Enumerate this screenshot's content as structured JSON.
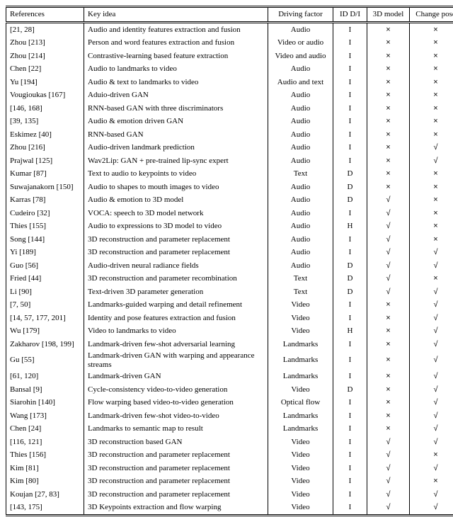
{
  "columns": [
    {
      "key": "ref",
      "label": "References",
      "class": "col-ref",
      "align": "left"
    },
    {
      "key": "idea",
      "label": "Key idea",
      "class": "col-idea",
      "align": "left"
    },
    {
      "key": "drv",
      "label": "Driving factor",
      "class": "col-drv",
      "align": "center"
    },
    {
      "key": "id",
      "label": "ID D/I",
      "class": "col-id",
      "align": "center"
    },
    {
      "key": "m3d",
      "label": "3D model",
      "class": "col-3d",
      "align": "center"
    },
    {
      "key": "pose",
      "label": "Change pose",
      "class": "col-pose",
      "align": "center"
    }
  ],
  "symbols": {
    "yes": "√",
    "no": "×"
  },
  "style": {
    "font_family": "Times New Roman",
    "font_size_pt": 8.5,
    "header_border": "double",
    "text_color": "#000000",
    "bg_color": "#ffffff"
  },
  "rows": [
    {
      "ref": "[21, 28]",
      "idea": "Audio and identity features extraction and fusion",
      "drv": "Audio",
      "id": "I",
      "m3d": "no",
      "pose": "no"
    },
    {
      "ref": "Zhou [213]",
      "idea": "Person and word features extraction and fusion",
      "drv": "Video or audio",
      "id": "I",
      "m3d": "no",
      "pose": "no"
    },
    {
      "ref": "Zhou [214]",
      "idea": "Contrastive-learning based feature extraction",
      "drv": "Video and audio",
      "id": "I",
      "m3d": "no",
      "pose": "no"
    },
    {
      "ref": "Chen [22]",
      "idea": "Audio to landmarks to video",
      "drv": "Audio",
      "id": "I",
      "m3d": "no",
      "pose": "no"
    },
    {
      "ref": "Yu [194]",
      "idea": "Audio & text to landmarks to video",
      "drv": "Audio and text",
      "id": "I",
      "m3d": "no",
      "pose": "no"
    },
    {
      "ref": "Vougioukas [167]",
      "idea": "Aduio-driven GAN",
      "drv": "Audio",
      "id": "I",
      "m3d": "no",
      "pose": "no"
    },
    {
      "ref": "[146, 168]",
      "idea": "RNN-based GAN with three discriminators",
      "drv": "Audio",
      "id": "I",
      "m3d": "no",
      "pose": "no"
    },
    {
      "ref": "[39, 135]",
      "idea": "Audio & emotion driven GAN",
      "drv": "Audio",
      "id": "I",
      "m3d": "no",
      "pose": "no"
    },
    {
      "ref": "Eskimez [40]",
      "idea": "RNN-based GAN",
      "drv": "Audio",
      "id": "I",
      "m3d": "no",
      "pose": "no"
    },
    {
      "ref": "Zhou [216]",
      "idea": "Audio-driven landmark prediction",
      "drv": "Audio",
      "id": "I",
      "m3d": "no",
      "pose": "yes"
    },
    {
      "ref": "Prajwal [125]",
      "idea": "Wav2Lip: GAN + pre-trained lip-sync expert",
      "drv": "Audio",
      "id": "I",
      "m3d": "no",
      "pose": "yes"
    },
    {
      "ref": "Kumar [87]",
      "idea": "Text to audio to keypoints to video",
      "drv": "Text",
      "id": "D",
      "m3d": "no",
      "pose": "no"
    },
    {
      "ref": "Suwajanakorn [150]",
      "idea": "Audio to shapes to mouth images to video",
      "drv": "Audio",
      "id": "D",
      "m3d": "no",
      "pose": "no"
    },
    {
      "ref": "Karras [78]",
      "idea": "Audio & emotion to 3D model",
      "drv": "Audio",
      "id": "D",
      "m3d": "yes",
      "pose": "no"
    },
    {
      "ref": "Cudeiro [32]",
      "idea": "VOCA: speech to 3D model network",
      "drv": "Audio",
      "id": "I",
      "m3d": "yes",
      "pose": "no"
    },
    {
      "ref": "Thies [155]",
      "idea": "Audio to expressions to 3D model to video",
      "drv": "Audio",
      "id": "H",
      "m3d": "yes",
      "pose": "no"
    },
    {
      "ref": "Song [144]",
      "idea": "3D reconstruction and parameter replacement",
      "drv": "Audio",
      "id": "I",
      "m3d": "yes",
      "pose": "no"
    },
    {
      "ref": "Yi [189]",
      "idea": "3D reconstruction and parameter replacement",
      "drv": "Audio",
      "id": "I",
      "m3d": "yes",
      "pose": "yes"
    },
    {
      "ref": "Guo [56]",
      "idea": "Audio-driven neural radiance fields",
      "drv": "Audio",
      "id": "D",
      "m3d": "yes",
      "pose": "yes"
    },
    {
      "ref": "Fried [44]",
      "idea": "3D reconstruction and parameter recombination",
      "drv": "Text",
      "id": "D",
      "m3d": "yes",
      "pose": "no"
    },
    {
      "ref": "Li [90]",
      "idea": "Text-driven 3D parameter generation",
      "drv": "Text",
      "id": "D",
      "m3d": "yes",
      "pose": "yes"
    },
    {
      "ref": "[7, 50]",
      "idea": "Landmarks-guided warping and detail refinement",
      "drv": "Video",
      "id": "I",
      "m3d": "no",
      "pose": "yes"
    },
    {
      "ref": "[14, 57, 177, 201]",
      "idea": "Identity and pose features extraction and fusion",
      "drv": "Video",
      "id": "I",
      "m3d": "no",
      "pose": "yes"
    },
    {
      "ref": "Wu [179]",
      "idea": "Video to landmarks to video",
      "drv": "Video",
      "id": "H",
      "m3d": "no",
      "pose": "yes"
    },
    {
      "ref": "Zakharov [198, 199]",
      "idea": "Landmark-driven few-shot adversarial learning",
      "drv": "Landmarks",
      "id": "I",
      "m3d": "no",
      "pose": "yes"
    },
    {
      "ref": "Gu [55]",
      "idea": "Landmark-driven GAN with warping and appearance streams",
      "drv": "Landmarks",
      "id": "I",
      "m3d": "no",
      "pose": "yes",
      "wrap": true
    },
    {
      "ref": "[61, 120]",
      "idea": "Landmark-driven GAN",
      "drv": "Landmarks",
      "id": "I",
      "m3d": "no",
      "pose": "yes"
    },
    {
      "ref": "Bansal [9]",
      "idea": "Cycle-consistency video-to-video generation",
      "drv": "Video",
      "id": "D",
      "m3d": "no",
      "pose": "yes"
    },
    {
      "ref": "Siarohin [140]",
      "idea": "Flow warping based video-to-video generation",
      "drv": "Optical flow",
      "id": "I",
      "m3d": "no",
      "pose": "yes"
    },
    {
      "ref": "Wang [173]",
      "idea": "Landmark-driven few-shot video-to-video",
      "drv": "Landmarks",
      "id": "I",
      "m3d": "no",
      "pose": "yes"
    },
    {
      "ref": "Chen [24]",
      "idea": "Landmarks to semantic map to result",
      "drv": "Landmarks",
      "id": "I",
      "m3d": "no",
      "pose": "yes"
    },
    {
      "ref": "[116, 121]",
      "idea": "3D reconstruction based GAN",
      "drv": "Video",
      "id": "I",
      "m3d": "yes",
      "pose": "yes"
    },
    {
      "ref": "Thies [156]",
      "idea": "3D reconstruction and parameter replacement",
      "drv": "Video",
      "id": "I",
      "m3d": "yes",
      "pose": "no"
    },
    {
      "ref": "Kim [81]",
      "idea": "3D reconstruction and parameter replacement",
      "drv": "Video",
      "id": "I",
      "m3d": "yes",
      "pose": "yes"
    },
    {
      "ref": "Kim [80]",
      "idea": "3D reconstruction and parameter replacement",
      "drv": "Video",
      "id": "I",
      "m3d": "yes",
      "pose": "no"
    },
    {
      "ref": "Koujan [27, 83]",
      "idea": "3D reconstruction and parameter replacement",
      "drv": "Video",
      "id": "I",
      "m3d": "yes",
      "pose": "yes"
    },
    {
      "ref": "[143, 175]",
      "idea": "3D Keypoints extraction and flow warping",
      "drv": "Video",
      "id": "I",
      "m3d": "yes",
      "pose": "yes"
    }
  ]
}
